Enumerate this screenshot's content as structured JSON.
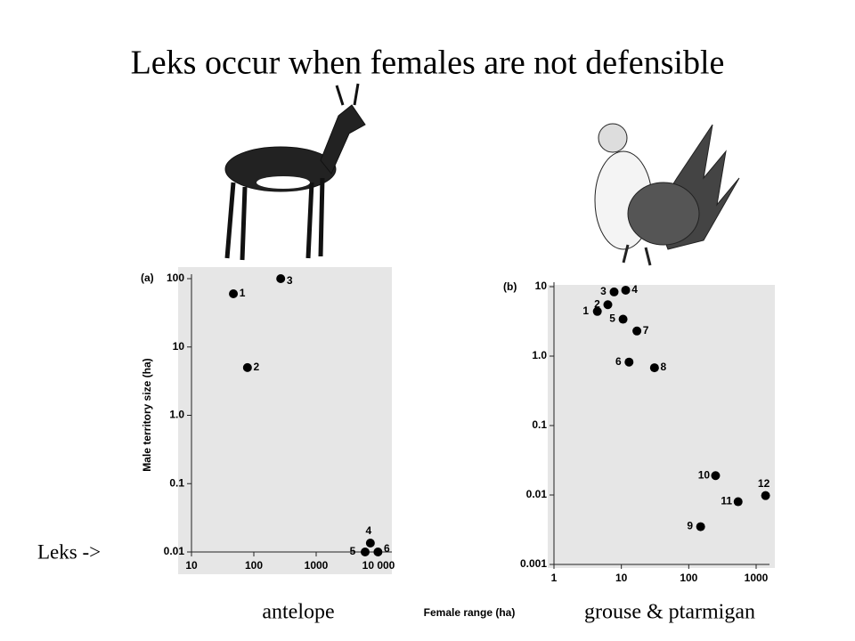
{
  "title": "Leks occur when females are not defensible",
  "annotation": "Leks ->",
  "x_label": "Female range (ha)",
  "chart_data": [
    {
      "type": "scatter",
      "panel": "(a)",
      "subtitle": "antelope",
      "y_label": "Male territory size (ha)",
      "log_x": true,
      "log_y": true,
      "color": "#000000",
      "x": [
        47,
        79,
        270,
        7400,
        6100,
        9800
      ],
      "values": [
        60,
        5,
        100,
        0.0135,
        0.01,
        0.01
      ],
      "point_labels": [
        "1",
        "2",
        "3",
        "4",
        "5",
        "6"
      ],
      "xlim": [
        10,
        10000
      ],
      "ylim": [
        0.01,
        100
      ],
      "xticks": [
        10,
        100,
        1000,
        {
          "value": 10000,
          "label": "10 000"
        }
      ],
      "yticks": [
        100,
        10,
        {
          "value": 1,
          "label": "1.0"
        },
        0.1,
        0.01
      ]
    },
    {
      "type": "scatter",
      "panel": "(b)",
      "subtitle": "grouse & ptarmigan",
      "log_x": true,
      "log_y": true,
      "color": "#000000",
      "x": [
        4.4,
        6.3,
        7.8,
        11.6,
        10.6,
        13,
        17,
        31,
        150,
        250,
        540,
        1380
      ],
      "values": [
        4.4,
        5.5,
        8.4,
        8.9,
        3.4,
        0.82,
        2.3,
        0.68,
        0.0035,
        0.019,
        0.008,
        0.0098
      ],
      "point_labels": [
        "1",
        "2",
        "3",
        "4",
        "5",
        "6",
        "7",
        "8",
        "9",
        "10",
        "11",
        "12"
      ],
      "xlim": [
        1,
        1000
      ],
      "ylim": [
        0.001,
        10
      ],
      "xticks": [
        1,
        10,
        100,
        1000
      ],
      "yticks": [
        10,
        {
          "value": 1,
          "label": "1.0"
        },
        0.1,
        0.01,
        0.001
      ]
    }
  ]
}
